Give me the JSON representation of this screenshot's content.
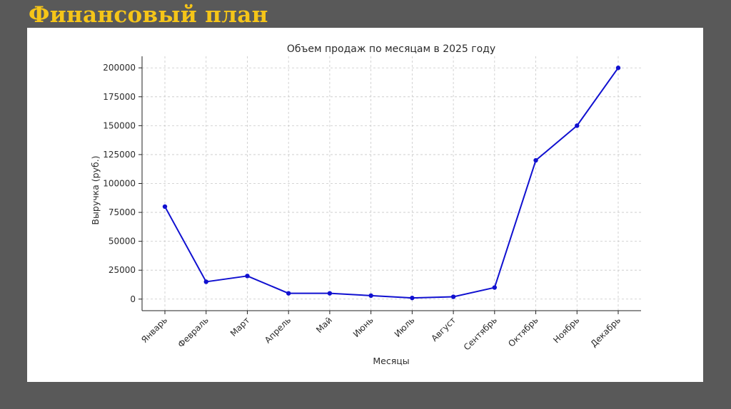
{
  "slide": {
    "title": "Финансовый план"
  },
  "colors": {
    "background": "#595959",
    "title": "#f5c518",
    "panel": "#ffffff",
    "series_line": "#1010d0"
  },
  "chart_data": {
    "type": "line",
    "title": "Объем продаж по месяцам в 2025 году",
    "xlabel": "Месяцы",
    "ylabel": "Выручка (руб.)",
    "categories": [
      "Январь",
      "Февраль",
      "Март",
      "Апрель",
      "Май",
      "Июнь",
      "Июль",
      "Август",
      "Сентябрь",
      "Октябрь",
      "Ноябрь",
      "Декабрь"
    ],
    "series": [
      {
        "values": [
          80000,
          15000,
          20000,
          5000,
          5000,
          3000,
          1000,
          2000,
          10000,
          120000,
          150000,
          200000
        ],
        "color": "#1010d0",
        "marker": "circle"
      }
    ],
    "yticks": [
      "0",
      "25000",
      "50000",
      "75000",
      "100000",
      "125000",
      "150000",
      "175000",
      "200000"
    ],
    "ylim": [
      -10000,
      210000
    ],
    "grid": true,
    "legend": "none"
  }
}
